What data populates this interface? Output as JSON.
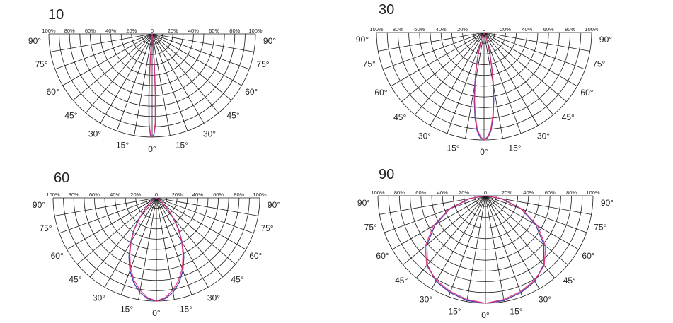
{
  "chart_data": [
    {
      "type": "polar",
      "title": "10",
      "radial_ticks": [
        "100%",
        "80%",
        "60%",
        "40%",
        "20%",
        "0",
        "20%",
        "40%",
        "60%",
        "80%",
        "100%"
      ],
      "angle_labels": [
        "90°",
        "75°",
        "60°",
        "45°",
        "30°",
        "15°",
        "0°",
        "15°",
        "30°",
        "45°",
        "60°",
        "75°",
        "90°"
      ],
      "angle_range": [
        -90,
        90
      ],
      "radial_range": [
        0,
        100
      ],
      "grid": true,
      "series": [
        {
          "color": "#4a3fb0",
          "angles": [
            0,
            1,
            2,
            3,
            4,
            5,
            6,
            7,
            8,
            10
          ],
          "values": [
            100,
            98,
            88,
            60,
            30,
            12,
            5,
            2,
            1,
            0
          ]
        },
        {
          "color": "#e0307a",
          "angles": [
            0,
            1,
            2,
            3,
            4,
            5,
            6,
            7,
            8,
            10
          ],
          "values": [
            100,
            97,
            86,
            58,
            29,
            11,
            5,
            2,
            1,
            0
          ]
        }
      ]
    },
    {
      "type": "polar",
      "title": "30",
      "radial_ticks": [
        "100%",
        "80%",
        "60%",
        "40%",
        "20%",
        "0",
        "20%",
        "40%",
        "60%",
        "80%",
        "100%"
      ],
      "angle_labels": [
        "90°",
        "75°",
        "60°",
        "45°",
        "30°",
        "15°",
        "0°",
        "15°",
        "30°",
        "45°",
        "60°",
        "75°",
        "90°"
      ],
      "angle_range": [
        -90,
        90
      ],
      "radial_range": [
        0,
        100
      ],
      "grid": true,
      "series": [
        {
          "color": "#4a3fb0",
          "angles": [
            0,
            2,
            4,
            6,
            8,
            10,
            12,
            15,
            18,
            22,
            26,
            30
          ],
          "values": [
            100,
            98,
            92,
            80,
            65,
            50,
            37,
            22,
            12,
            5,
            2,
            0
          ]
        },
        {
          "color": "#e0307a",
          "angles": [
            0,
            2,
            4,
            6,
            8,
            10,
            12,
            15,
            18,
            22,
            26,
            30
          ],
          "values": [
            100,
            97,
            90,
            78,
            63,
            48,
            35,
            21,
            11,
            5,
            2,
            0
          ]
        }
      ]
    },
    {
      "type": "polar",
      "title": "60",
      "radial_ticks": [
        "100%",
        "80%",
        "60%",
        "40%",
        "20%",
        "0",
        "20%",
        "40%",
        "60%",
        "80%",
        "100%"
      ],
      "angle_labels": [
        "90°",
        "75°",
        "60°",
        "45°",
        "30°",
        "15°",
        "0°",
        "15°",
        "30°",
        "45°",
        "60°",
        "75°",
        "90°"
      ],
      "angle_range": [
        -90,
        90
      ],
      "radial_range": [
        0,
        100
      ],
      "grid": true,
      "series": [
        {
          "color": "#4a3fb0",
          "angles": [
            0,
            5,
            10,
            15,
            20,
            25,
            30,
            35,
            40,
            45,
            50,
            55,
            60
          ],
          "values": [
            100,
            98,
            93,
            85,
            75,
            63,
            50,
            38,
            26,
            16,
            8,
            3,
            0
          ]
        },
        {
          "color": "#e0307a",
          "angles": [
            0,
            5,
            10,
            15,
            20,
            25,
            30,
            35,
            40,
            45,
            50,
            55,
            60
          ],
          "values": [
            100,
            97,
            91,
            83,
            73,
            61,
            49,
            37,
            25,
            15,
            8,
            3,
            0
          ]
        }
      ]
    },
    {
      "type": "polar",
      "title": "90",
      "radial_ticks": [
        "100%",
        "80%",
        "60%",
        "40%",
        "20%",
        "0",
        "20%",
        "40%",
        "60%",
        "80%",
        "100%"
      ],
      "angle_labels": [
        "90°",
        "75°",
        "60°",
        "45°",
        "30°",
        "15°",
        "0°",
        "15°",
        "30°",
        "45°",
        "60°",
        "75°",
        "90°"
      ],
      "angle_range": [
        -90,
        90
      ],
      "radial_range": [
        0,
        100
      ],
      "grid": true,
      "series": [
        {
          "color": "#4a3fb0",
          "angles": [
            0,
            10,
            20,
            30,
            40,
            50,
            60,
            70,
            80,
            90
          ],
          "values": [
            100,
            99,
            96,
            92,
            84,
            71,
            54,
            35,
            15,
            0
          ]
        },
        {
          "color": "#e0307a",
          "angles": [
            0,
            10,
            20,
            30,
            40,
            50,
            60,
            70,
            80,
            90
          ],
          "values": [
            100,
            98,
            95,
            91,
            85,
            73,
            56,
            36,
            16,
            0
          ]
        }
      ]
    }
  ]
}
